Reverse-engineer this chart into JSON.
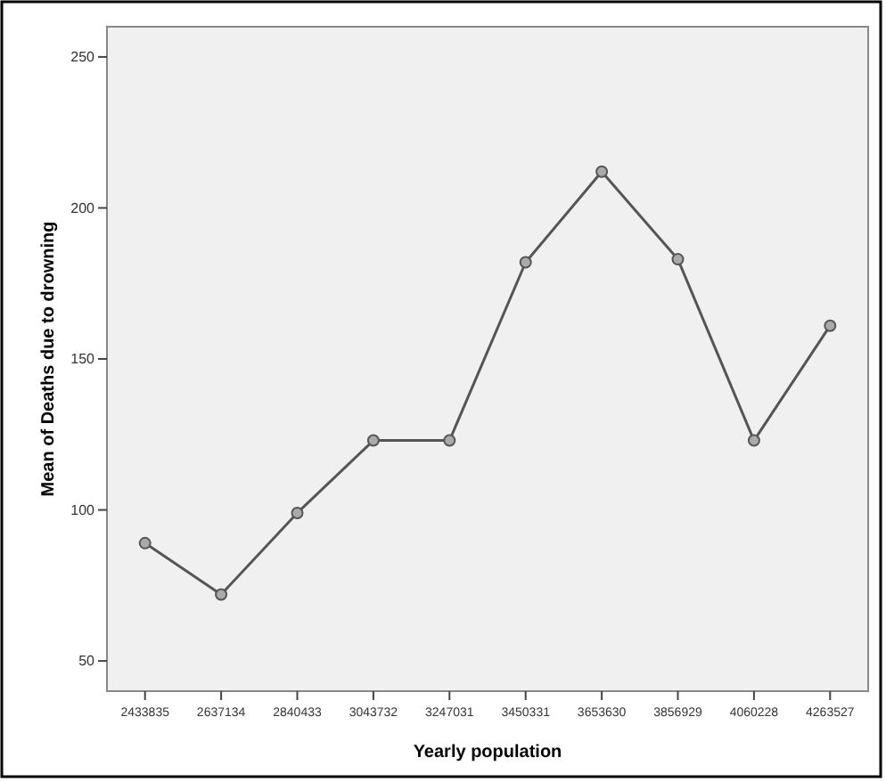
{
  "chart_data": {
    "type": "line",
    "xlabel": "Yearly population",
    "ylabel": "Mean of Deaths due to drowning",
    "categories": [
      "2433835",
      "2637134",
      "2840433",
      "3043732",
      "3247031",
      "3450331",
      "3653630",
      "3856929",
      "4060228",
      "4263527"
    ],
    "values": [
      89,
      72,
      99,
      123,
      123,
      182,
      212,
      183,
      123,
      161
    ],
    "color": "#555555",
    "marker": "circle",
    "ylim": [
      40,
      260
    ],
    "yticks": [
      50,
      100,
      150,
      200,
      250
    ],
    "grid": false
  }
}
